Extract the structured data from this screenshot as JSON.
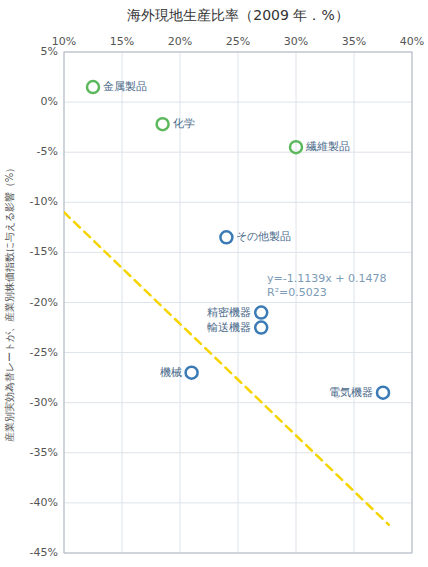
{
  "chart_data": {
    "type": "scatter",
    "title": "海外現地生産比率（2009 年．%）",
    "ylabel": "産業別実効為替レートが、産業別株価指数に与える影響（%）",
    "xlim": [
      10,
      40
    ],
    "ylim": [
      -45,
      5
    ],
    "xticks": [
      {
        "value": 10,
        "label": "10%"
      },
      {
        "value": 15,
        "label": "15%"
      },
      {
        "value": 20,
        "label": "20%"
      },
      {
        "value": 25,
        "label": "25%"
      },
      {
        "value": 30,
        "label": "30%"
      },
      {
        "value": 35,
        "label": "35%"
      },
      {
        "value": 40,
        "label": "40%"
      }
    ],
    "yticks": [
      {
        "value": 5,
        "label": "5%"
      },
      {
        "value": 0,
        "label": "0%"
      },
      {
        "value": -5,
        "label": "-5%"
      },
      {
        "value": -10,
        "label": "-10%"
      },
      {
        "value": -15,
        "label": "-15%"
      },
      {
        "value": -20,
        "label": "-20%"
      },
      {
        "value": -25,
        "label": "-25%"
      },
      {
        "value": -30,
        "label": "-30%"
      },
      {
        "value": -35,
        "label": "-35%"
      },
      {
        "value": -40,
        "label": "-40%"
      },
      {
        "value": -45,
        "label": "-45%"
      }
    ],
    "grid": true,
    "series": [
      {
        "type": "scatter",
        "marker": "circle",
        "color": "#5cb85c",
        "x": [
          12.5,
          18.5,
          30.0
        ],
        "values": [
          1.5,
          -2.2,
          -4.5
        ],
        "labels": [
          "金属製品",
          "化学",
          "繊維製品"
        ]
      },
      {
        "type": "scatter",
        "marker": "circle",
        "color": "#3a7ab5",
        "x": [
          24.0,
          27.0,
          27.0,
          21.0,
          37.5
        ],
        "values": [
          -13.5,
          -21.0,
          -22.5,
          -27.0,
          -29.0
        ],
        "labels": [
          "その他製品",
          "精密機器",
          "輸送機器",
          "機械",
          "電気機器"
        ]
      },
      {
        "type": "line",
        "line_style": "dashed",
        "color": "#f5d400",
        "x": [
          10,
          38
        ],
        "values": [
          -10.9912,
          -42.1804
        ]
      }
    ],
    "annotations": [
      {
        "text": "y=-1.1139x + 0.1478\nR²=0.5023",
        "x": 27.5,
        "y": -17.0,
        "color": "#7a9ab5"
      }
    ]
  }
}
